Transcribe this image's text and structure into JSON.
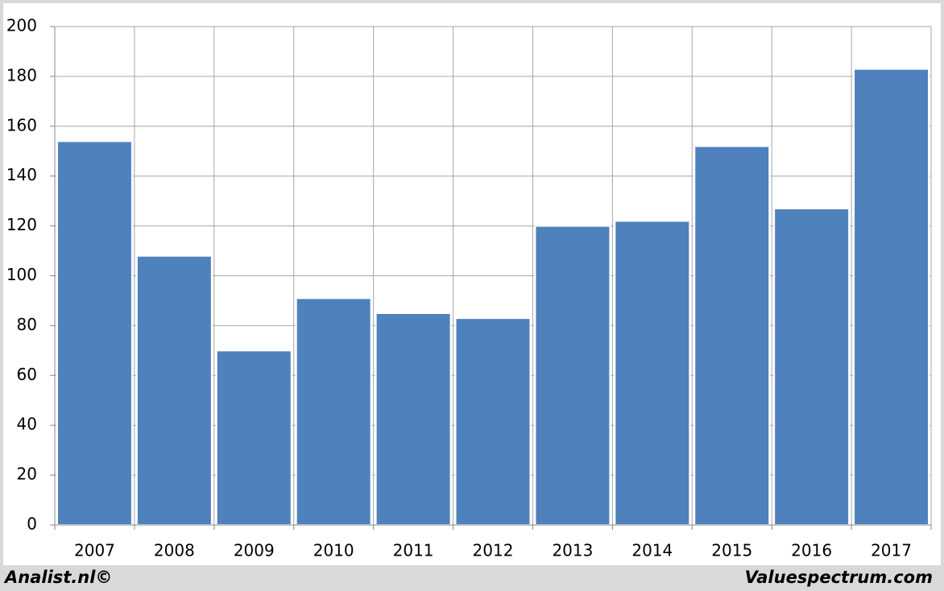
{
  "chart_data": {
    "type": "bar",
    "categories": [
      "2007",
      "2008",
      "2009",
      "2010",
      "2011",
      "2012",
      "2013",
      "2014",
      "2015",
      "2016",
      "2017"
    ],
    "values": [
      154,
      108,
      70,
      91,
      85,
      83,
      120,
      122,
      152,
      127,
      183
    ],
    "color": "#4f81bd",
    "ylim": [
      0,
      200
    ],
    "yticks": [
      0,
      20,
      40,
      60,
      80,
      100,
      120,
      140,
      160,
      180,
      200
    ],
    "grid": true,
    "source_left": "Analist.nl©",
    "source_right": "Valuespectrum.com"
  }
}
